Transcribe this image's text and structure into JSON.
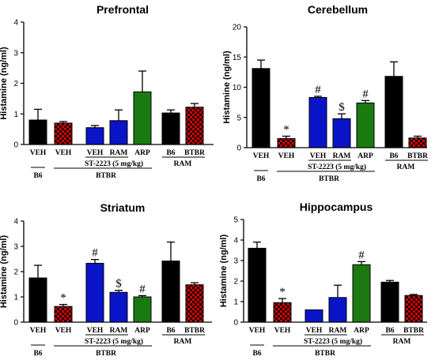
{
  "colors": {
    "black": "#000000",
    "checker_red": "#d40000",
    "blue": "#0a14c8",
    "green": "#1a7a10"
  },
  "chart_data": [
    {
      "type": "bar",
      "title": "Prefrontal",
      "ylabel": "Histamine (ng/ml)",
      "ylim": [
        0,
        4
      ],
      "yticks": [
        0,
        1,
        2,
        3,
        4
      ],
      "bars": [
        {
          "label": "VEH",
          "value": 0.8,
          "error": 0.35,
          "fill": "black"
        },
        {
          "label": "VEH",
          "value": 0.7,
          "error": 0.05,
          "fill": "checker_red"
        },
        {
          "label": "VEH",
          "value": 0.55,
          "error": 0.07,
          "fill": "blue"
        },
        {
          "label": "RAM",
          "value": 0.78,
          "error": 0.35,
          "fill": "blue"
        },
        {
          "label": "ARP",
          "value": 1.72,
          "error": 0.68,
          "fill": "green"
        },
        {
          "label": "B6",
          "value": 1.03,
          "error": 0.1,
          "fill": "black"
        },
        {
          "label": "BTBR",
          "value": 1.22,
          "error": 0.12,
          "fill": "checker_red"
        }
      ],
      "annotations": [
        "",
        "",
        "",
        "",
        "",
        "",
        ""
      ],
      "groups": {
        "b6": "B6",
        "st": "ST-2223 (5 mg/kg)",
        "btbr": "BTBR",
        "ram": "RAM"
      }
    },
    {
      "type": "bar",
      "title": "Cerebellum",
      "ylabel": "Histamine (ng/ml)",
      "ylim": [
        0,
        20
      ],
      "yticks": [
        0,
        5,
        10,
        15,
        20
      ],
      "bars": [
        {
          "label": "VEH",
          "value": 13.1,
          "error": 1.4,
          "fill": "black"
        },
        {
          "label": "VEH",
          "value": 1.5,
          "error": 0.4,
          "fill": "checker_red"
        },
        {
          "label": "VEH",
          "value": 8.3,
          "error": 0.2,
          "fill": "blue"
        },
        {
          "label": "RAM",
          "value": 4.8,
          "error": 0.8,
          "fill": "blue"
        },
        {
          "label": "ARP",
          "value": 7.4,
          "error": 0.4,
          "fill": "green"
        },
        {
          "label": "B6",
          "value": 11.8,
          "error": 2.4,
          "fill": "black"
        },
        {
          "label": "BTBR",
          "value": 1.6,
          "error": 0.3,
          "fill": "checker_red"
        }
      ],
      "annotations": [
        "",
        "*",
        "#",
        "$",
        "#",
        "",
        ""
      ],
      "groups": {
        "b6": "B6",
        "st": "ST-2223 (5 mg/kg)",
        "btbr": "BTBR",
        "ram": "RAM"
      }
    },
    {
      "type": "bar",
      "title": "Striatum",
      "ylabel": "Histamine (ng/ml)",
      "ylim": [
        0,
        4
      ],
      "yticks": [
        0,
        1,
        2,
        3,
        4
      ],
      "bars": [
        {
          "label": "VEH",
          "value": 1.75,
          "error": 0.5,
          "fill": "black"
        },
        {
          "label": "VEH",
          "value": 0.62,
          "error": 0.08,
          "fill": "checker_red"
        },
        {
          "label": "VEH",
          "value": 2.33,
          "error": 0.15,
          "fill": "blue"
        },
        {
          "label": "RAM",
          "value": 1.18,
          "error": 0.08,
          "fill": "blue"
        },
        {
          "label": "ARP",
          "value": 1.0,
          "error": 0.05,
          "fill": "green"
        },
        {
          "label": "B6",
          "value": 2.42,
          "error": 0.75,
          "fill": "black"
        },
        {
          "label": "BTBR",
          "value": 1.48,
          "error": 0.08,
          "fill": "checker_red"
        }
      ],
      "annotations": [
        "",
        "*",
        "#",
        "$",
        "#",
        "",
        ""
      ],
      "groups": {
        "b6": "B6",
        "st": "ST-2223 (5 mg/kg)",
        "btbr": "BTBR",
        "ram": "RAM"
      }
    },
    {
      "type": "bar",
      "title": "Hippocampus",
      "ylabel": "Histamine (ng/ml)",
      "ylim": [
        0,
        5
      ],
      "yticks": [
        0,
        1,
        2,
        3,
        4,
        5
      ],
      "bars": [
        {
          "label": "VEH",
          "value": 3.6,
          "error": 0.3,
          "fill": "black"
        },
        {
          "label": "VEH",
          "value": 0.95,
          "error": 0.2,
          "fill": "checker_red"
        },
        {
          "label": "VEH",
          "value": 0.6,
          "error": 0.0,
          "fill": "blue"
        },
        {
          "label": "RAM",
          "value": 1.2,
          "error": 0.6,
          "fill": "blue"
        },
        {
          "label": "ARP",
          "value": 2.8,
          "error": 0.15,
          "fill": "green"
        },
        {
          "label": "B6",
          "value": 1.95,
          "error": 0.08,
          "fill": "black"
        },
        {
          "label": "BTBR",
          "value": 1.3,
          "error": 0.05,
          "fill": "checker_red"
        }
      ],
      "annotations": [
        "",
        "*",
        "",
        "",
        "#",
        "",
        ""
      ],
      "groups": {
        "b6": "B6",
        "st": "ST-2223 (5 mg/kg)",
        "btbr": "BTBR",
        "ram": "RAM"
      }
    }
  ]
}
